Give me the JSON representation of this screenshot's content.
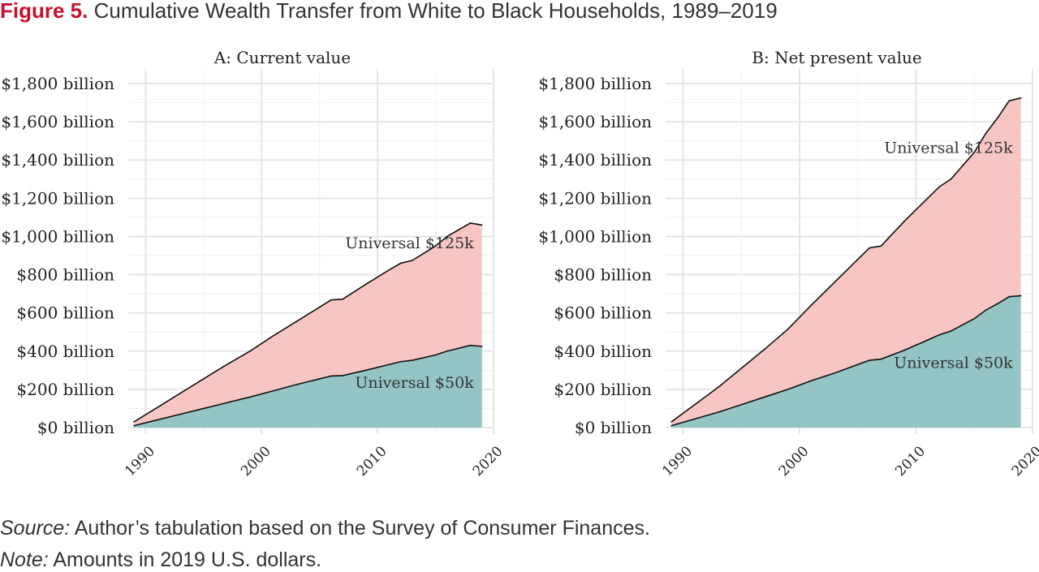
{
  "figure": {
    "number_label": "Figure 5.",
    "title": "Cumulative Wealth Transfer from White to Black Households, 1989–2019"
  },
  "footer": {
    "source_label": "Source:",
    "source_text": "Author’s tabulation based on the Survey of Consumer Finances.",
    "note_label": "Note:",
    "note_text": "Amounts in 2019 U.S. dollars."
  },
  "colors": {
    "upper_area": "#f7c6c2",
    "lower_area": "#94c4c4",
    "line": "#111111",
    "grid": "#e6e6e6"
  },
  "chart_data": [
    {
      "type": "area",
      "title": "A: Current value",
      "x": [
        1989,
        1991,
        1993,
        1995,
        1997,
        1999,
        2001,
        2003,
        2005,
        2006,
        2007,
        2009,
        2011,
        2012,
        2013,
        2015,
        2016,
        2017,
        2018,
        2019
      ],
      "series": [
        {
          "name": "Universal $50k",
          "values": [
            10,
            40,
            70,
            100,
            130,
            160,
            192,
            225,
            255,
            270,
            272,
            300,
            330,
            345,
            352,
            380,
            400,
            415,
            430,
            425
          ]
        },
        {
          "name": "Universal $125k",
          "values": [
            30,
            105,
            180,
            255,
            330,
            400,
            480,
            555,
            630,
            668,
            672,
            750,
            825,
            860,
            875,
            950,
            1000,
            1035,
            1070,
            1060
          ]
        }
      ],
      "ylim": [
        0,
        1800
      ],
      "yticks": [
        "$0 billion",
        "$200 billion",
        "$400 billion",
        "$600 billion",
        "$800 billion",
        "$1,000 billion",
        "$1,200 billion",
        "$1,400 billion",
        "$1,600 billion",
        "$1,800 billion"
      ],
      "xlim": [
        1988.5,
        2020
      ],
      "xticks": [
        "1990",
        "2000",
        "2010",
        "2020"
      ],
      "grid": true,
      "legend": "none"
    },
    {
      "type": "area",
      "title": "B: Net present value",
      "x": [
        1989,
        1991,
        1993,
        1995,
        1997,
        1999,
        2001,
        2003,
        2005,
        2006,
        2007,
        2009,
        2011,
        2012,
        2013,
        2015,
        2016,
        2017,
        2018,
        2019
      ],
      "series": [
        {
          "name": "Universal $50k",
          "values": [
            10,
            45,
            80,
            120,
            160,
            200,
            245,
            285,
            330,
            352,
            358,
            405,
            458,
            485,
            505,
            570,
            615,
            648,
            685,
            690
          ]
        },
        {
          "name": "Universal $125k",
          "values": [
            30,
            120,
            210,
            310,
            410,
            515,
            640,
            760,
            880,
            940,
            950,
            1080,
            1200,
            1260,
            1300,
            1440,
            1540,
            1620,
            1710,
            1725
          ]
        }
      ],
      "ylim": [
        0,
        1800
      ],
      "yticks": [
        "$0 billion",
        "$200 billion",
        "$400 billion",
        "$600 billion",
        "$800 billion",
        "$1,000 billion",
        "$1,200 billion",
        "$1,400 billion",
        "$1,600 billion",
        "$1,800 billion"
      ],
      "xlim": [
        1988.5,
        2020
      ],
      "xticks": [
        "1990",
        "2000",
        "2010",
        "2020"
      ],
      "grid": true,
      "legend": "none"
    }
  ]
}
